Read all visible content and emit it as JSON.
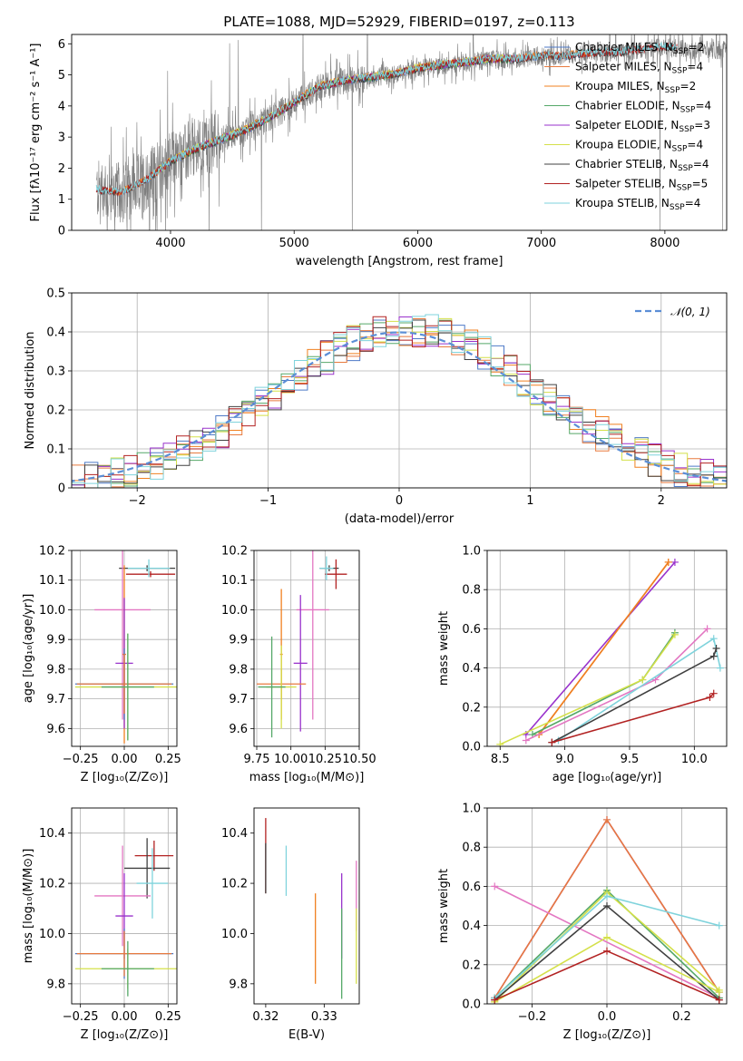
{
  "figure": {
    "title": "PLATE=1088, MJD=52929, FIBERID=0197, z=0.113"
  },
  "chart_data": [
    {
      "id": "spectrum",
      "type": "line",
      "title": "PLATE=1088, MJD=52929, FIBERID=0197, z=0.113",
      "xlabel": "wavelength [Angstrom, rest frame]",
      "ylabel": "Flux [fλ10⁻¹⁷ erg cm⁻² s⁻¹ A⁻¹]",
      "xlim": [
        3200,
        8500
      ],
      "ylim": [
        0,
        6.3
      ],
      "xticks": [
        4000,
        5000,
        6000,
        7000,
        8000
      ],
      "yticks": [
        0,
        1,
        2,
        3,
        4,
        5,
        6
      ],
      "grid": false,
      "legend_position": "top-right",
      "data_color": "#7f7f7f",
      "data_x_range": [
        3400,
        8500
      ],
      "continuum": {
        "x": [
          3400,
          3600,
          3800,
          4000,
          4200,
          4400,
          4600,
          4800,
          5000,
          5200,
          5400,
          5600,
          5800,
          6000,
          6200,
          6400,
          6600,
          6800,
          7000,
          7200,
          7400,
          7600,
          7800,
          8000,
          8200,
          8500
        ],
        "y": [
          1.3,
          1.2,
          1.6,
          2.2,
          2.6,
          2.9,
          3.2,
          3.6,
          4.1,
          4.6,
          4.8,
          4.9,
          5.0,
          5.2,
          5.3,
          5.4,
          5.5,
          5.5,
          5.6,
          5.6,
          5.7,
          5.7,
          5.8,
          5.9,
          5.8,
          5.8
        ]
      },
      "models": [
        {
          "name": "Chabrier MILES, N_SSP=2",
          "label": "Chabrier MILES, N",
          "sub": "SSP",
          "n": "=2",
          "color": "#4e7ac7",
          "x_range": [
            3500,
            7400
          ]
        },
        {
          "name": "Salpeter MILES, N_SSP=4",
          "label": "Salpeter MILES, N",
          "sub": "SSP",
          "n": "=4",
          "color": "#e87a3e",
          "x_range": [
            3500,
            7400
          ]
        },
        {
          "name": "Kroupa MILES, N_SSP=2",
          "label": "Kroupa MILES, N",
          "sub": "SSP",
          "n": "=2",
          "color": "#f08020",
          "x_range": [
            3500,
            7400
          ]
        },
        {
          "name": "Chabrier ELODIE, N_SSP=4",
          "label": "Chabrier ELODIE, N",
          "sub": "SSP",
          "n": "=4",
          "color": "#55a868",
          "x_range": [
            3900,
            6800
          ]
        },
        {
          "name": "Salpeter ELODIE, N_SSP=3",
          "label": "Salpeter ELODIE, N",
          "sub": "SSP",
          "n": "=3",
          "color": "#9932cc",
          "x_range": [
            3900,
            6800
          ]
        },
        {
          "name": "Kroupa ELODIE, N_SSP=4",
          "label": "Kroupa ELODIE, N",
          "sub": "SSP",
          "n": "=4",
          "color": "#d4e04a",
          "x_range": [
            3900,
            6800
          ]
        },
        {
          "name": "Chabrier STELIB, N_SSP=4",
          "label": "Chabrier STELIB, N",
          "sub": "SSP",
          "n": "=4",
          "color": "#404040",
          "x_range": [
            3400,
            8100
          ]
        },
        {
          "name": "Salpeter STELIB, N_SSP=5",
          "label": "Salpeter STELIB, N",
          "sub": "SSP",
          "n": "=5",
          "color": "#b22222",
          "x_range": [
            3400,
            8100
          ]
        },
        {
          "name": "Kroupa STELIB, N_SSP=4",
          "label": "Kroupa STELIB, N",
          "sub": "SSP",
          "n": "=4",
          "color": "#7fd3dc",
          "x_range": [
            3400,
            8100
          ]
        }
      ]
    },
    {
      "id": "residuals",
      "type": "histogram",
      "xlabel": "(data-model)/error",
      "ylabel": "Normed distribution",
      "xlim": [
        -2.5,
        2.5
      ],
      "ylim": [
        0,
        0.5
      ],
      "xticks": [
        -2,
        -1,
        0,
        1,
        2
      ],
      "yticks": [
        0.0,
        0.1,
        0.2,
        0.3,
        0.4,
        0.5
      ],
      "grid": true,
      "legend_position": "top-right",
      "legend_label": "𝒩(0, 1)",
      "gaussian": {
        "mean": 0,
        "sigma": 1,
        "color": "#5b8ed6"
      },
      "bin_width": 0.1
    },
    {
      "id": "age-vs-Z",
      "type": "errorbar",
      "xlabel": "Z [log₁₀(Z/Z⊙)]",
      "ylabel": "age  [log₁₀(age/yr)]",
      "xlim": [
        -0.3,
        0.3
      ],
      "ylim": [
        9.54,
        10.2
      ],
      "xticks": [
        -0.25,
        0.0,
        0.25
      ],
      "xticklabels": [
        "−0.25",
        "0.00",
        "0.25"
      ],
      "yticks": [
        9.6,
        9.7,
        9.8,
        9.9,
        10.0,
        10.1,
        10.2
      ],
      "yticklabels": [
        "9.6",
        "9.7",
        "9.8",
        "9.9",
        "10.0",
        "10.1",
        "10.2"
      ],
      "grid": true
    },
    {
      "id": "age-vs-mass",
      "type": "errorbar",
      "xlabel": "mass [log₁₀(M/M⊙)]",
      "ylabel": "",
      "xlim": [
        9.73,
        10.5
      ],
      "ylim": [
        9.54,
        10.2
      ],
      "xticks": [
        9.75,
        10.0,
        10.25,
        10.5
      ],
      "xticklabels": [
        "9.75",
        "10.00",
        "10.25",
        "10.50"
      ],
      "yticks": [
        9.6,
        9.7,
        9.8,
        9.9,
        10.0,
        10.1,
        10.2
      ],
      "yticklabels": [
        "9.6",
        "9.7",
        "9.8",
        "9.9",
        "10.0",
        "10.1",
        "10.2"
      ],
      "grid": true
    },
    {
      "id": "weight-vs-age",
      "type": "line",
      "xlabel": "age  [log₁₀(age/yr)]",
      "ylabel": "mass weight",
      "xlim": [
        8.4,
        10.25
      ],
      "ylim": [
        0,
        1.0
      ],
      "xticks": [
        8.5,
        9.0,
        9.5,
        10.0
      ],
      "xticklabels": [
        "8.5",
        "9.0",
        "9.5",
        "10.0"
      ],
      "yticks": [
        0,
        0.2,
        0.4,
        0.6,
        0.8,
        1.0
      ],
      "yticklabels": [
        "0.0",
        "0.2",
        "0.4",
        "0.6",
        "0.8",
        "1.0"
      ],
      "grid": true,
      "series": [
        {
          "color": "#9932cc",
          "x": [
            8.7,
            9.85
          ],
          "y": [
            0.06,
            0.94
          ]
        },
        {
          "color": "#e87a3e",
          "x": [
            8.8,
            9.8
          ],
          "y": [
            0.06,
            0.94
          ]
        },
        {
          "color": "#f08020",
          "x": [
            8.8,
            9.8
          ],
          "y": [
            0.06,
            0.94
          ]
        },
        {
          "color": "#55a868",
          "x": [
            8.75,
            9.6,
            9.85
          ],
          "y": [
            0.06,
            0.34,
            0.58
          ]
        },
        {
          "color": "#d4e04a",
          "x": [
            8.5,
            9.6,
            9.85
          ],
          "y": [
            0.01,
            0.34,
            0.57
          ]
        },
        {
          "color": "#e377c2",
          "x": [
            8.7,
            9.7,
            10.1
          ],
          "y": [
            0.03,
            0.34,
            0.6
          ]
        },
        {
          "color": "#7fd3dc",
          "x": [
            8.95,
            10.15,
            10.2
          ],
          "y": [
            0.03,
            0.55,
            0.4
          ]
        },
        {
          "color": "#404040",
          "x": [
            8.9,
            10.15,
            10.17
          ],
          "y": [
            0.02,
            0.46,
            0.5
          ]
        },
        {
          "color": "#b22222",
          "x": [
            8.9,
            10.12,
            10.15
          ],
          "y": [
            0.02,
            0.25,
            0.27
          ]
        }
      ]
    },
    {
      "id": "mass-vs-Z",
      "type": "errorbar",
      "xlabel": "Z [log₁₀(Z/Z⊙)]",
      "ylabel": "mass [log₁₀(M/M⊙)]",
      "xlim": [
        -0.3,
        0.3
      ],
      "ylim": [
        9.72,
        10.5
      ],
      "xticks": [
        -0.25,
        0.0,
        0.25
      ],
      "xticklabels": [
        "−0.25",
        "0.00",
        "0.25"
      ],
      "yticks": [
        9.8,
        10.0,
        10.2,
        10.4
      ],
      "yticklabels": [
        "9.8",
        "10.0",
        "10.2",
        "10.4"
      ],
      "grid": true
    },
    {
      "id": "mass-vs-EBV",
      "type": "errorbar",
      "xlabel": "E(B-V)",
      "ylabel": "",
      "xlim": [
        0.318,
        0.336
      ],
      "ylim": [
        9.72,
        10.5
      ],
      "xticks": [
        0.32,
        0.33
      ],
      "xticklabels": [
        "0.32",
        "0.33"
      ],
      "yticks": [
        9.8,
        10.0,
        10.2,
        10.4
      ],
      "yticklabels": [
        "9.8",
        "10.0",
        "10.2",
        "10.4"
      ],
      "grid": false
    },
    {
      "id": "weight-vs-Z",
      "type": "line",
      "xlabel": "Z [log₁₀(Z/Z⊙)]",
      "ylabel": "mass weight",
      "xlim": [
        -0.32,
        0.32
      ],
      "ylim": [
        0,
        1.0
      ],
      "xticks": [
        -0.2,
        0.0,
        0.2
      ],
      "xticklabels": [
        "−0.2",
        "0.0",
        "0.2"
      ],
      "yticks": [
        0,
        0.2,
        0.4,
        0.6,
        0.8,
        1.0
      ],
      "yticklabels": [
        "0.0",
        "0.2",
        "0.4",
        "0.6",
        "0.8",
        "1.0"
      ],
      "grid": true,
      "series": [
        {
          "color": "#9932cc",
          "x": [
            -0.3,
            0.0,
            0.3
          ],
          "y": [
            0.03,
            0.94,
            0.06
          ]
        },
        {
          "color": "#e87a3e",
          "x": [
            -0.3,
            0.0,
            0.3
          ],
          "y": [
            0.03,
            0.94,
            0.06
          ]
        },
        {
          "color": "#e377c2",
          "x": [
            -0.3,
            0.3
          ],
          "y": [
            0.6,
            0.03
          ]
        },
        {
          "color": "#55a868",
          "x": [
            -0.3,
            0.0,
            0.3
          ],
          "y": [
            0.03,
            0.58,
            0.03
          ]
        },
        {
          "color": "#d4e04a",
          "x": [
            -0.3,
            0.0,
            0.3
          ],
          "y": [
            0.01,
            0.57,
            0.07
          ]
        },
        {
          "color": "#7fd3dc",
          "x": [
            -0.3,
            0.0,
            0.3
          ],
          "y": [
            0.03,
            0.55,
            0.4
          ]
        },
        {
          "color": "#404040",
          "x": [
            -0.3,
            0.0,
            0.3
          ],
          "y": [
            0.02,
            0.5,
            0.02
          ]
        },
        {
          "color": "#d4e04a",
          "x": [
            -0.3,
            0.0,
            0.3
          ],
          "y": [
            0.01,
            0.34,
            0.06
          ]
        },
        {
          "color": "#b22222",
          "x": [
            -0.3,
            0.0,
            0.3
          ],
          "y": [
            0.02,
            0.27,
            0.02
          ]
        }
      ]
    }
  ]
}
